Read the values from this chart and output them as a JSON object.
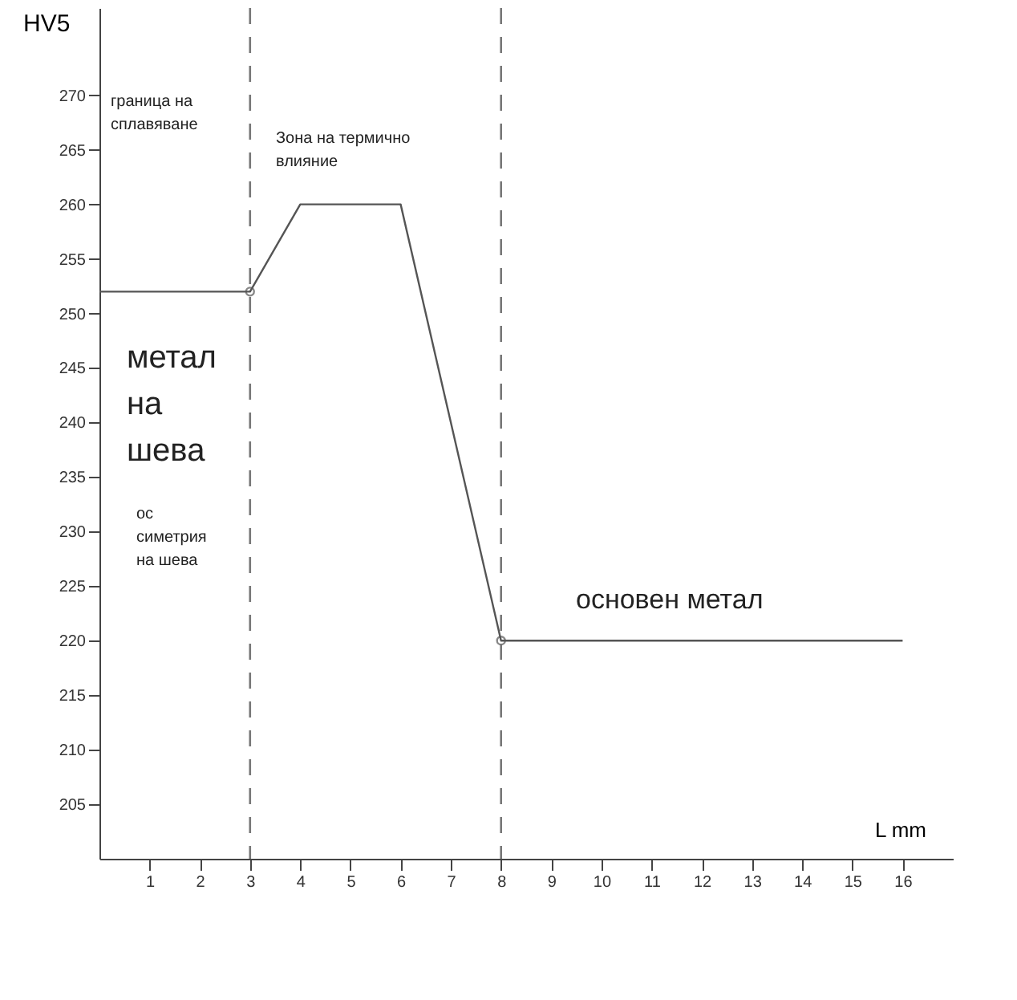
{
  "chart_data": {
    "type": "line",
    "ylabel": "HV5",
    "xlabel": "L mm",
    "xlim": [
      0,
      17
    ],
    "ylim": [
      200,
      278
    ],
    "xticks": [
      1,
      2,
      3,
      4,
      5,
      6,
      7,
      8,
      9,
      10,
      11,
      12,
      13,
      14,
      15,
      16
    ],
    "yticks": [
      205,
      210,
      215,
      220,
      225,
      230,
      235,
      240,
      245,
      250,
      255,
      260,
      265,
      270
    ],
    "grid": false,
    "series": [
      {
        "type": "line",
        "color": "#555555",
        "marker": "none",
        "x": [
          0,
          3,
          4,
          6,
          8,
          16
        ],
        "values": [
          252,
          252,
          260,
          260,
          220,
          220
        ]
      },
      {
        "type": "scatter",
        "color": "#555555",
        "marker": "circle",
        "x": [
          3,
          8
        ],
        "values": [
          252,
          220
        ]
      }
    ],
    "ref_lines": [
      {
        "axis": "x",
        "value": 3,
        "line_style": "dashed",
        "color": "#777777"
      },
      {
        "axis": "x",
        "value": 8,
        "line_style": "dashed",
        "color": "#777777"
      }
    ],
    "annotations": [
      "граница на сплавяване",
      "Зона на термично влияние",
      "метал на шева",
      "ос симетрия на шева",
      "основен метал"
    ]
  }
}
